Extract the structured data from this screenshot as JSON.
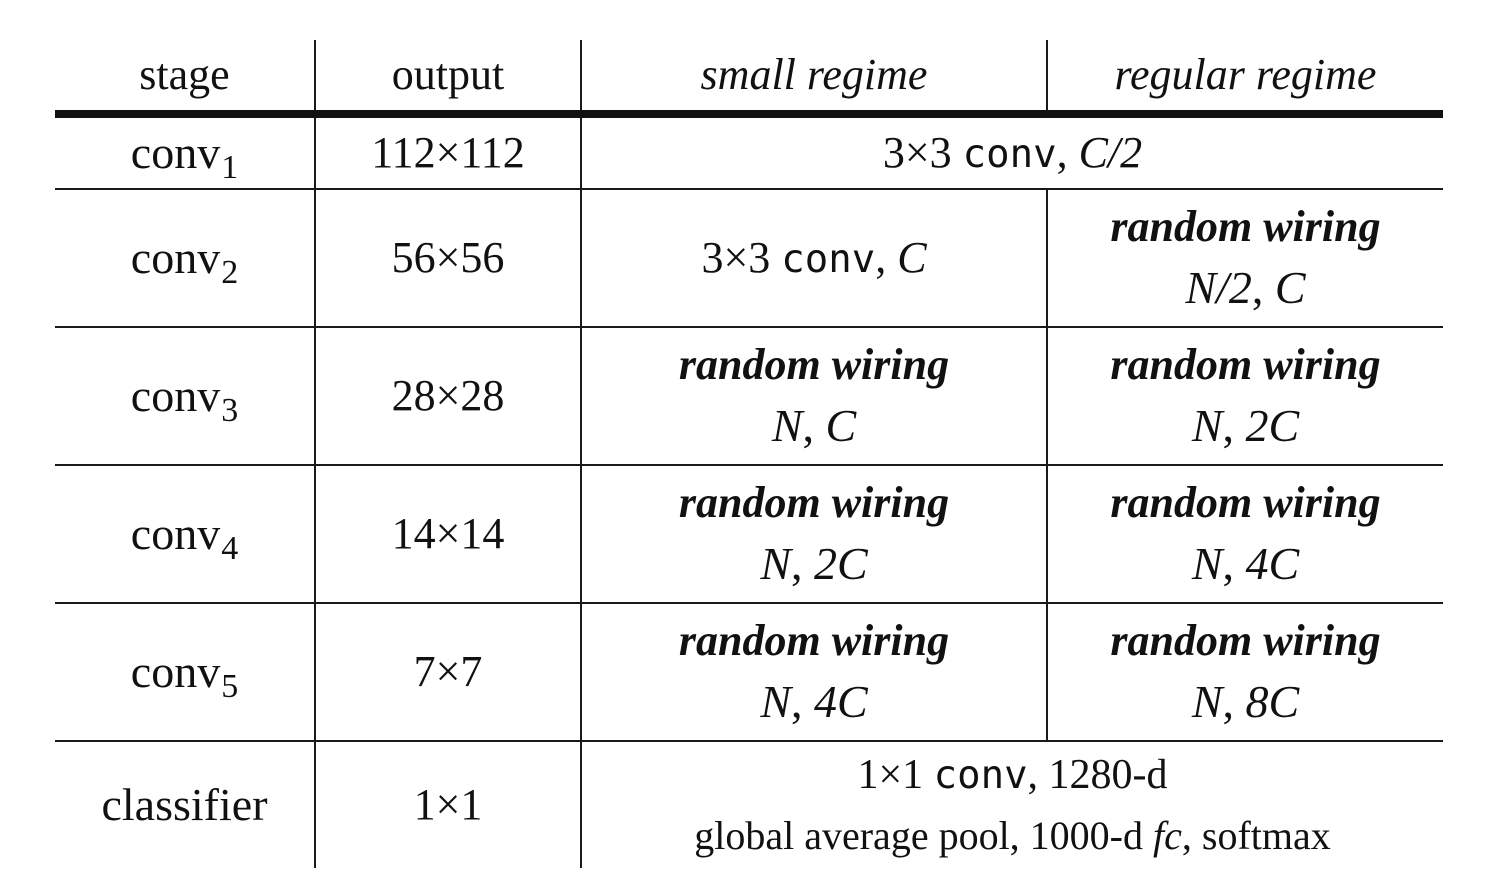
{
  "header": {
    "stage": "stage",
    "output": "output",
    "small_regime": "small regime",
    "regular_regime": "regular regime"
  },
  "rows": [
    {
      "stage_base": "conv",
      "stage_sub": "1",
      "output": "112×112",
      "shared": {
        "size": "3×3",
        "op": "conv",
        "sep": ", ",
        "channels": "C/2"
      }
    },
    {
      "stage_base": "conv",
      "stage_sub": "2",
      "output": "56×56",
      "small": {
        "size": "3×3",
        "op": "conv",
        "sep": ", ",
        "channels": "C"
      },
      "regular": {
        "label": "random wiring",
        "n": "N/2",
        "c": "C"
      }
    },
    {
      "stage_base": "conv",
      "stage_sub": "3",
      "output": "28×28",
      "small": {
        "label": "random wiring",
        "n": "N",
        "c": "C"
      },
      "regular": {
        "label": "random wiring",
        "n": "N",
        "c": "2C"
      }
    },
    {
      "stage_base": "conv",
      "stage_sub": "4",
      "output": "14×14",
      "small": {
        "label": "random wiring",
        "n": "N",
        "c": "2C"
      },
      "regular": {
        "label": "random wiring",
        "n": "N",
        "c": "4C"
      }
    },
    {
      "stage_base": "conv",
      "stage_sub": "5",
      "output": "7×7",
      "small": {
        "label": "random wiring",
        "n": "N",
        "c": "4C"
      },
      "regular": {
        "label": "random wiring",
        "n": "N",
        "c": "8C"
      }
    },
    {
      "stage": "classifier",
      "output": "1×1",
      "shared_line1": {
        "size": "1×1",
        "op": "conv",
        "rest": ", 1280-d"
      },
      "shared_line2": {
        "pre": "global average pool, 1000-d ",
        "fc": "fc",
        "post": ", softmax"
      }
    }
  ],
  "param_separator": ", "
}
